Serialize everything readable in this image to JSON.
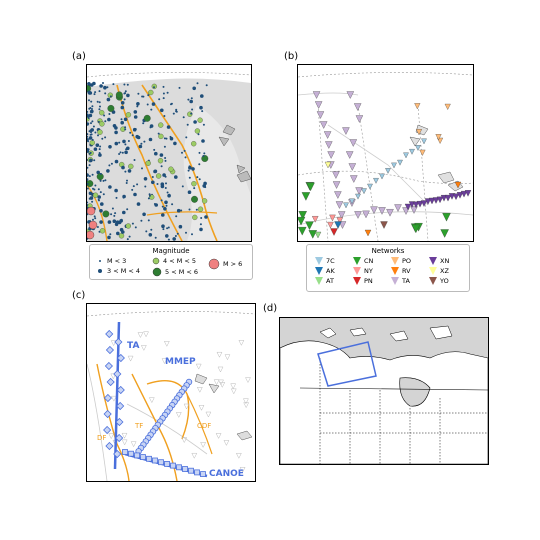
{
  "panels": {
    "a": "(a)",
    "b": "(b)",
    "c": "(c)",
    "d": "(d)"
  },
  "magnitude_legend": {
    "title": "Magnitude",
    "items": [
      {
        "label": "M < 3",
        "color": "#1f4e79"
      },
      {
        "label": "3 < M < 4",
        "color": "#1f4e79"
      },
      {
        "label": "4 < M < 5",
        "color": "#9ccc65"
      },
      {
        "label": "5 < M < 6",
        "color": "#2e7d32"
      },
      {
        "label": "M > 6",
        "color": "#f08080"
      }
    ]
  },
  "networks_legend": {
    "title": "Networks",
    "items": [
      {
        "label": "7C",
        "color": "#9ecae1"
      },
      {
        "label": "AK",
        "color": "#1f77b4"
      },
      {
        "label": "AT",
        "color": "#98df8a"
      },
      {
        "label": "CN",
        "color": "#2ca02c"
      },
      {
        "label": "NY",
        "color": "#ff9896"
      },
      {
        "label": "PN",
        "color": "#d62728"
      },
      {
        "label": "PO",
        "color": "#ffbb78"
      },
      {
        "label": "RV",
        "color": "#ff7f0e"
      },
      {
        "label": "TA",
        "color": "#c5b0d5"
      },
      {
        "label": "XN",
        "color": "#6a3d9a"
      },
      {
        "label": "XZ",
        "color": "#ffff99"
      },
      {
        "label": "YO",
        "color": "#8c564b"
      }
    ]
  },
  "panel_c_labels": {
    "ta": "TA",
    "mmep": "MMEP",
    "canoe": "CANOE",
    "df": "DF",
    "tf": "TF",
    "cdf": "CDF"
  },
  "colors": {
    "fault": "#f0a020",
    "array": "#4a6fdc",
    "land": "#e0e0e0",
    "water": "#cccccc"
  }
}
